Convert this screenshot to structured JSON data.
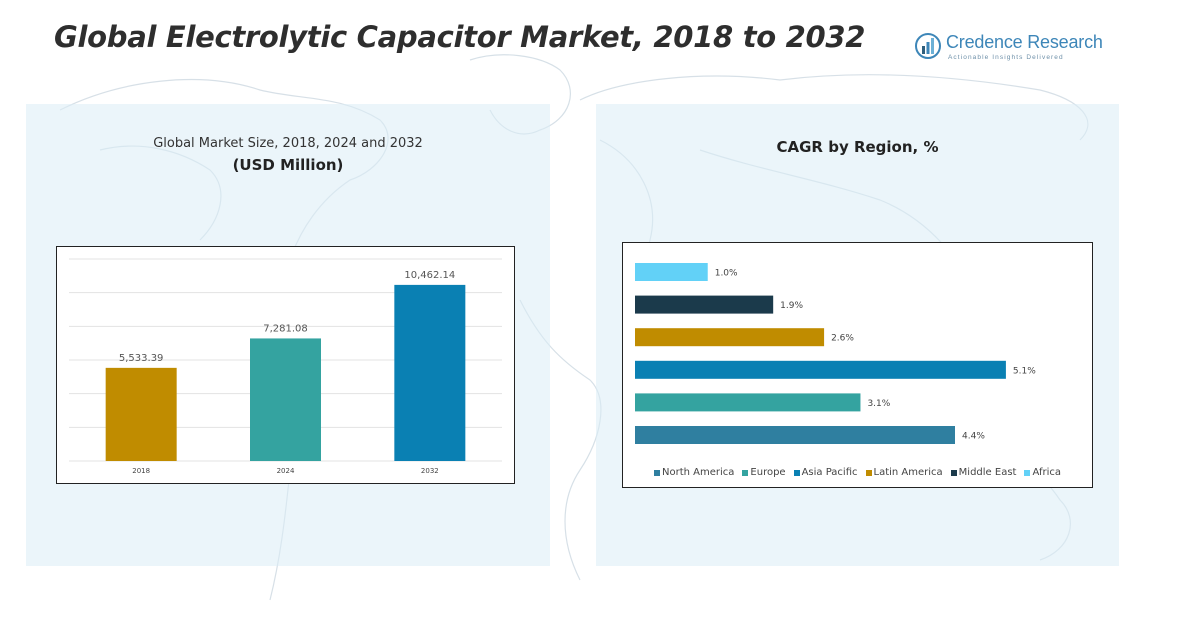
{
  "page": {
    "title": "Global Electrolytic Capacitor Market, 2018 to 2032"
  },
  "brand": {
    "name": "Credence Research",
    "tagline": "Actionable Insights Delivered",
    "logo_icon": "bar-chart-circle-logo"
  },
  "colors": {
    "gold": "#c08c00",
    "teal": "#34a3a0",
    "blue": "#0a80b3",
    "steel": "#2f7fa0",
    "navy": "#1b3a4b",
    "sky": "#62d1f7",
    "panel": "#dbecf5"
  },
  "chart_data": [
    {
      "type": "bar",
      "title": "Global Market Size, 2018, 2024 and 2032",
      "subtitle": "(USD Million)",
      "categories": [
        "2018",
        "2024",
        "2032"
      ],
      "values": [
        5533.39,
        7281.08,
        10462.14
      ],
      "value_labels": [
        "5,533.39",
        "7,281.08",
        "10,462.14"
      ],
      "bar_colors": [
        "#c08c00",
        "#34a3a0",
        "#0a80b3"
      ],
      "ylim": [
        0,
        12000
      ],
      "grid": true,
      "legend": "none"
    },
    {
      "type": "bar",
      "orientation": "horizontal",
      "title": "CAGR by Region, %",
      "categories": [
        "North America",
        "Europe",
        "Asia Pacific",
        "Latin America",
        "Middle East",
        "Africa"
      ],
      "values": [
        4.4,
        3.1,
        5.1,
        2.6,
        1.9,
        1.0
      ],
      "value_labels": [
        "4.4%",
        "3.1%",
        "5.1%",
        "2.6%",
        "1.9%",
        "1.0%"
      ],
      "bar_colors": [
        "#2f7fa0",
        "#34a3a0",
        "#0a80b3",
        "#c08c00",
        "#1b3a4b",
        "#62d1f7"
      ],
      "xlim": [
        0,
        5.5
      ],
      "grid": false,
      "legend": "bottom"
    }
  ]
}
